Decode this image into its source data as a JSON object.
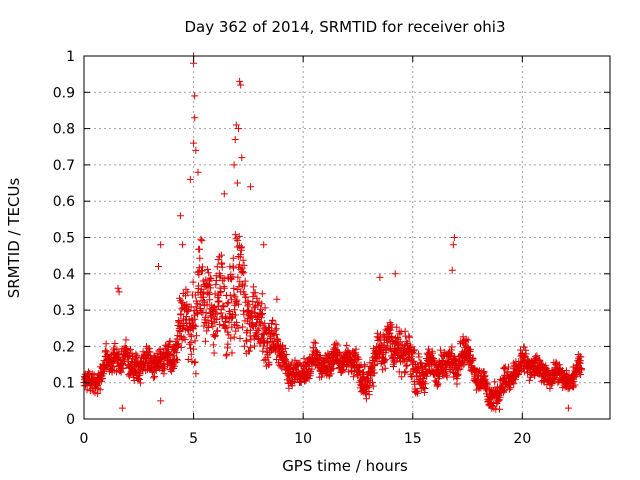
{
  "chart_data": {
    "type": "scatter",
    "title": "Day 362 of 2014, SRMTID for receiver ohi3",
    "xlabel": "GPS time / hours",
    "ylabel": "SRMTID / TECUs",
    "xlim": [
      0,
      24
    ],
    "ylim": [
      0,
      1
    ],
    "x_ticks": [
      "0",
      "5",
      "10",
      "15",
      "20"
    ],
    "y_ticks": [
      "0",
      "0.1",
      "0.2",
      "0.3",
      "0.4",
      "0.5",
      "0.6",
      "0.7",
      "0.8",
      "0.9",
      "1"
    ],
    "grid": true,
    "marker": "+",
    "marker_color": "#e00000",
    "series": [
      {
        "name": "SRMTID",
        "trend": {
          "x": [
            0.0,
            0.5,
            1.0,
            1.5,
            2.0,
            2.5,
            3.0,
            3.5,
            4.0,
            4.5,
            5.0,
            5.5,
            6.0,
            6.5,
            7.0,
            7.5,
            8.0,
            8.5,
            9.0,
            9.5,
            10.0,
            10.5,
            11.0,
            11.5,
            12.0,
            12.5,
            13.0,
            13.5,
            14.0,
            14.5,
            15.0,
            15.5,
            16.0,
            16.5,
            17.0,
            17.5,
            18.0,
            18.5,
            19.0,
            19.5,
            20.0,
            20.5,
            21.0,
            21.5,
            22.0,
            22.5,
            22.7
          ],
          "y": [
            0.1,
            0.1,
            0.15,
            0.17,
            0.16,
            0.14,
            0.16,
            0.15,
            0.17,
            0.25,
            0.3,
            0.34,
            0.32,
            0.3,
            0.36,
            0.3,
            0.26,
            0.22,
            0.18,
            0.12,
            0.13,
            0.16,
            0.15,
            0.16,
            0.17,
            0.14,
            0.09,
            0.22,
            0.2,
            0.19,
            0.15,
            0.12,
            0.15,
            0.14,
            0.17,
            0.18,
            0.12,
            0.06,
            0.08,
            0.12,
            0.15,
            0.15,
            0.12,
            0.13,
            0.1,
            0.13,
            0.14
          ]
        },
        "spread": {
          "x": [
            0.0,
            1.0,
            2.0,
            3.0,
            4.0,
            4.5,
            5.0,
            5.5,
            6.0,
            6.5,
            7.0,
            7.5,
            8.0,
            8.5,
            9.0,
            10.0,
            12.0,
            13.5,
            14.5,
            16.0,
            17.0,
            18.0,
            19.0,
            20.0,
            21.0,
            22.7
          ],
          "y": [
            0.03,
            0.05,
            0.06,
            0.05,
            0.06,
            0.12,
            0.22,
            0.16,
            0.14,
            0.16,
            0.22,
            0.18,
            0.12,
            0.08,
            0.06,
            0.05,
            0.05,
            0.08,
            0.08,
            0.06,
            0.06,
            0.05,
            0.05,
            0.05,
            0.04,
            0.04
          ]
        },
        "spikes": [
          {
            "x": 5.0,
            "y": 1.0
          },
          {
            "x": 5.0,
            "y": 0.98
          },
          {
            "x": 5.05,
            "y": 0.89
          },
          {
            "x": 5.05,
            "y": 0.83
          },
          {
            "x": 5.0,
            "y": 0.76
          },
          {
            "x": 5.1,
            "y": 0.74
          },
          {
            "x": 7.1,
            "y": 0.93
          },
          {
            "x": 7.15,
            "y": 0.92
          },
          {
            "x": 6.95,
            "y": 0.81
          },
          {
            "x": 7.05,
            "y": 0.8
          },
          {
            "x": 6.9,
            "y": 0.77
          },
          {
            "x": 6.85,
            "y": 0.7
          },
          {
            "x": 7.2,
            "y": 0.72
          },
          {
            "x": 4.85,
            "y": 0.66
          },
          {
            "x": 5.2,
            "y": 0.68
          },
          {
            "x": 7.0,
            "y": 0.65
          },
          {
            "x": 7.6,
            "y": 0.64
          },
          {
            "x": 6.4,
            "y": 0.62
          },
          {
            "x": 4.4,
            "y": 0.56
          },
          {
            "x": 4.5,
            "y": 0.48
          },
          {
            "x": 3.5,
            "y": 0.48
          },
          {
            "x": 3.4,
            "y": 0.42
          },
          {
            "x": 16.9,
            "y": 0.5
          },
          {
            "x": 16.85,
            "y": 0.48
          },
          {
            "x": 16.8,
            "y": 0.41
          },
          {
            "x": 14.2,
            "y": 0.4
          },
          {
            "x": 13.5,
            "y": 0.39
          },
          {
            "x": 1.55,
            "y": 0.36
          },
          {
            "x": 1.6,
            "y": 0.35
          },
          {
            "x": 1.75,
            "y": 0.03
          },
          {
            "x": 18.6,
            "y": 0.03
          },
          {
            "x": 18.7,
            "y": 0.03
          },
          {
            "x": 22.1,
            "y": 0.03
          },
          {
            "x": 3.5,
            "y": 0.05
          },
          {
            "x": 8.8,
            "y": 0.33
          },
          {
            "x": 8.2,
            "y": 0.48
          }
        ]
      }
    ]
  }
}
